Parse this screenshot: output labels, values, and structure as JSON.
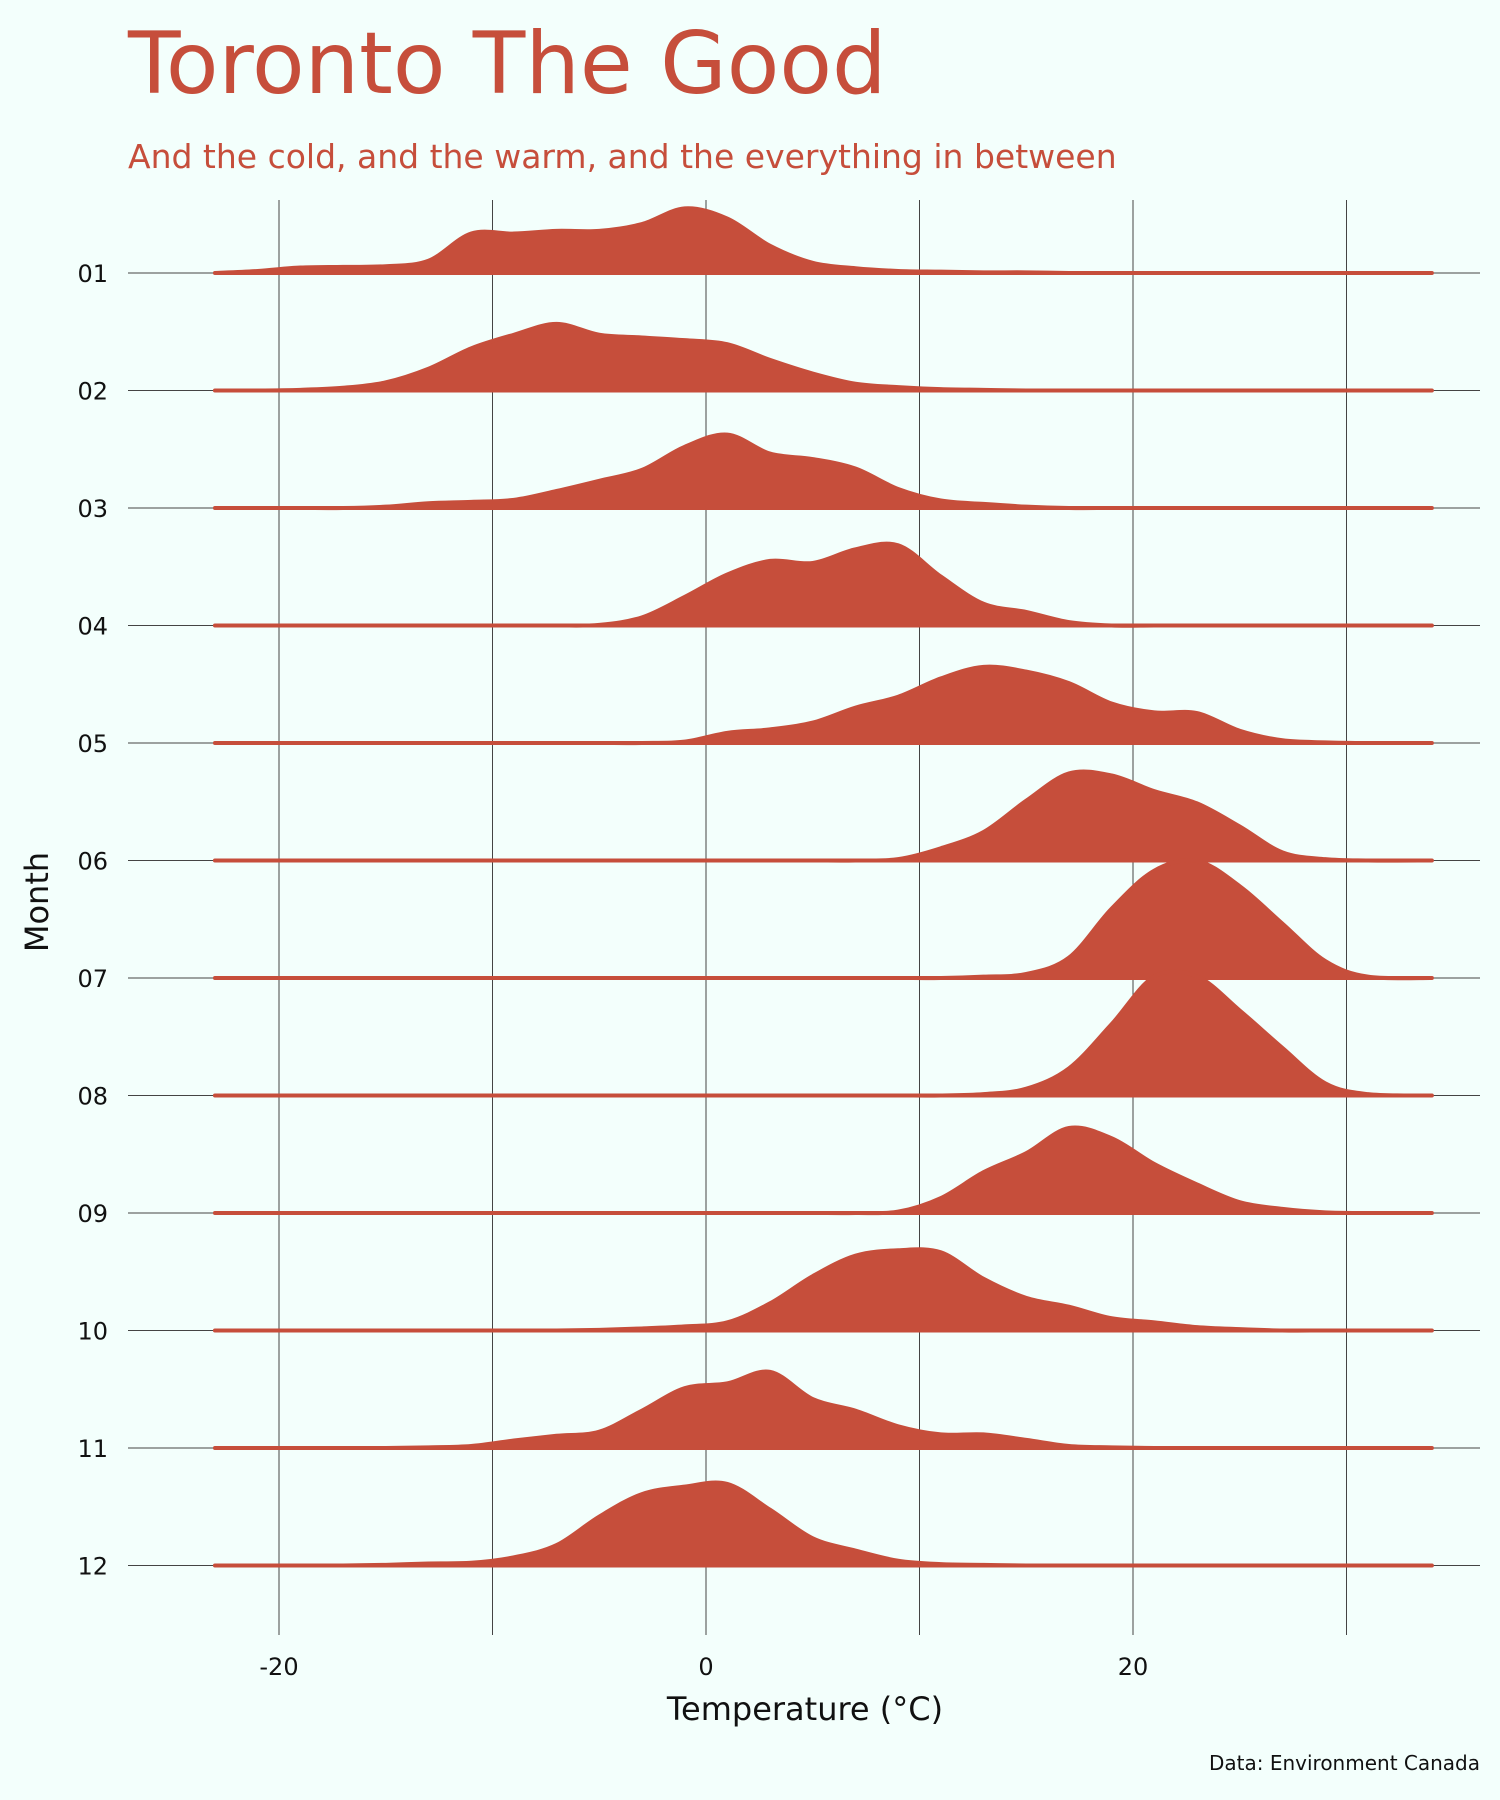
{
  "chart_data": {
    "type": "ridgeline",
    "title": "Toronto The Good",
    "subtitle": "And the cold, and the warm, and the everything in between",
    "xlabel": "Temperature (°C)",
    "ylabel": "Month",
    "caption": "Data: Environment Canada",
    "xlim": [
      -26,
      33
    ],
    "x_ticks": [
      -20,
      0,
      20
    ],
    "x_gridlines": [
      -20,
      -10,
      0,
      10,
      20,
      30
    ],
    "grid": true,
    "fill_color": "#c64e3b",
    "background_color": "#f3fffc",
    "x": [
      -23,
      -21,
      -19,
      -17,
      -15,
      -13,
      -11,
      -9,
      -7,
      -5,
      -3,
      -1,
      1,
      3,
      5,
      7,
      9,
      11,
      13,
      15,
      17,
      19,
      21,
      23,
      25,
      27,
      29,
      31,
      34
    ],
    "series": [
      {
        "name": "01",
        "values": [
          0.0,
          0.03,
          0.08,
          0.09,
          0.1,
          0.18,
          0.58,
          0.58,
          0.62,
          0.62,
          0.72,
          0.95,
          0.8,
          0.4,
          0.15,
          0.07,
          0.03,
          0.02,
          0.01,
          0.01,
          0.0,
          0.0,
          0.0,
          0.0,
          0.0,
          0.0,
          0.0,
          0.0,
          0.0
        ]
      },
      {
        "name": "02",
        "values": [
          0.0,
          0.0,
          0.01,
          0.04,
          0.12,
          0.32,
          0.62,
          0.82,
          0.98,
          0.82,
          0.78,
          0.74,
          0.68,
          0.45,
          0.25,
          0.1,
          0.05,
          0.02,
          0.01,
          0.0,
          0.0,
          0.0,
          0.0,
          0.0,
          0.0,
          0.0,
          0.0,
          0.0,
          0.0
        ]
      },
      {
        "name": "03",
        "values": [
          0.0,
          0.0,
          0.0,
          0.0,
          0.02,
          0.07,
          0.09,
          0.12,
          0.25,
          0.4,
          0.56,
          0.9,
          1.08,
          0.8,
          0.72,
          0.58,
          0.28,
          0.11,
          0.06,
          0.02,
          0.0,
          0.0,
          0.0,
          0.0,
          0.0,
          0.0,
          0.0,
          0.0,
          0.0
        ]
      },
      {
        "name": "04",
        "values": [
          0.0,
          0.0,
          0.0,
          0.0,
          0.0,
          0.0,
          0.0,
          0.0,
          0.0,
          0.01,
          0.12,
          0.42,
          0.75,
          0.95,
          0.92,
          1.12,
          1.18,
          0.72,
          0.32,
          0.2,
          0.05,
          0.0,
          0.0,
          0.0,
          0.0,
          0.0,
          0.0,
          0.0,
          0.0
        ]
      },
      {
        "name": "05",
        "values": [
          0.0,
          0.0,
          0.0,
          0.0,
          0.0,
          0.0,
          0.0,
          0.0,
          0.0,
          0.0,
          0.0,
          0.02,
          0.15,
          0.2,
          0.3,
          0.52,
          0.68,
          0.95,
          1.12,
          1.05,
          0.88,
          0.58,
          0.45,
          0.44,
          0.18,
          0.04,
          0.01,
          0.0,
          0.0
        ]
      },
      {
        "name": "06",
        "values": [
          0.0,
          0.0,
          0.0,
          0.0,
          0.0,
          0.0,
          0.0,
          0.0,
          0.0,
          0.0,
          0.0,
          0.0,
          0.0,
          0.0,
          0.0,
          0.0,
          0.02,
          0.18,
          0.42,
          0.88,
          1.28,
          1.25,
          1.02,
          0.84,
          0.5,
          0.12,
          0.02,
          0.0,
          0.0
        ]
      },
      {
        "name": "07",
        "values": [
          0.0,
          0.0,
          0.0,
          0.0,
          0.0,
          0.0,
          0.0,
          0.0,
          0.0,
          0.0,
          0.0,
          0.0,
          0.0,
          0.0,
          0.0,
          0.0,
          0.0,
          0.0,
          0.02,
          0.06,
          0.3,
          1.02,
          1.58,
          1.72,
          1.35,
          0.8,
          0.25,
          0.02,
          0.0
        ]
      },
      {
        "name": "08",
        "values": [
          0.0,
          0.0,
          0.0,
          0.0,
          0.0,
          0.0,
          0.0,
          0.0,
          0.0,
          0.0,
          0.0,
          0.0,
          0.0,
          0.0,
          0.0,
          0.0,
          0.0,
          0.0,
          0.02,
          0.1,
          0.4,
          1.05,
          1.75,
          1.75,
          1.25,
          0.7,
          0.18,
          0.02,
          0.0
        ]
      },
      {
        "name": "09",
        "values": [
          0.0,
          0.0,
          0.0,
          0.0,
          0.0,
          0.0,
          0.0,
          0.0,
          0.0,
          0.0,
          0.0,
          0.0,
          0.0,
          0.0,
          0.0,
          0.0,
          0.02,
          0.22,
          0.6,
          0.88,
          1.25,
          1.1,
          0.72,
          0.42,
          0.16,
          0.06,
          0.01,
          0.0,
          0.0
        ]
      },
      {
        "name": "10",
        "values": [
          0.0,
          0.0,
          0.0,
          0.0,
          0.0,
          0.0,
          0.0,
          0.0,
          0.0,
          0.01,
          0.03,
          0.06,
          0.12,
          0.4,
          0.8,
          1.1,
          1.18,
          1.15,
          0.76,
          0.48,
          0.35,
          0.18,
          0.12,
          0.05,
          0.02,
          0.0,
          0.0,
          0.0,
          0.0
        ]
      },
      {
        "name": "11",
        "values": [
          0.0,
          0.0,
          0.0,
          0.0,
          0.0,
          0.01,
          0.03,
          0.11,
          0.18,
          0.24,
          0.55,
          0.88,
          0.95,
          1.12,
          0.72,
          0.55,
          0.32,
          0.2,
          0.2,
          0.12,
          0.03,
          0.01,
          0.0,
          0.0,
          0.0,
          0.0,
          0.0,
          0.0,
          0.0
        ]
      },
      {
        "name": "12",
        "values": [
          0.0,
          0.0,
          0.0,
          0.0,
          0.01,
          0.03,
          0.04,
          0.12,
          0.3,
          0.72,
          1.05,
          1.16,
          1.2,
          0.82,
          0.4,
          0.22,
          0.07,
          0.02,
          0.01,
          0.0,
          0.0,
          0.0,
          0.0,
          0.0,
          0.0,
          0.0,
          0.0,
          0.0,
          0.0
        ]
      }
    ]
  }
}
